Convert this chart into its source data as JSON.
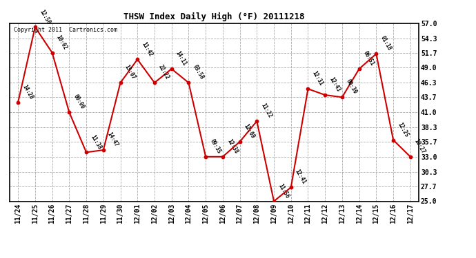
{
  "title": "THSW Index Daily High (°F) 20111218",
  "copyright": "Copyright 2011  Cartronics.com",
  "background_color": "#ffffff",
  "plot_bg_color": "#ffffff",
  "grid_color": "#aaaaaa",
  "line_color": "#cc0000",
  "marker_color": "#cc0000",
  "x_labels": [
    "11/24",
    "11/25",
    "11/26",
    "11/27",
    "11/28",
    "11/29",
    "11/30",
    "12/01",
    "12/02",
    "12/03",
    "12/04",
    "12/05",
    "12/06",
    "12/07",
    "12/08",
    "12/09",
    "12/10",
    "12/11",
    "12/12",
    "12/13",
    "12/14",
    "12/15",
    "12/16",
    "12/17"
  ],
  "y_values": [
    42.8,
    56.3,
    51.7,
    41.0,
    33.8,
    34.2,
    46.3,
    50.5,
    46.3,
    48.8,
    46.3,
    33.0,
    33.0,
    35.7,
    39.4,
    25.0,
    27.5,
    45.2,
    44.1,
    43.7,
    48.8,
    51.5,
    36.0,
    33.0
  ],
  "annotations": [
    "14:28",
    "12:50",
    "10:02",
    "00:00",
    "11:38",
    "14:47",
    "13:07",
    "11:42",
    "22:22",
    "14:11",
    "03:58",
    "09:35",
    "12:38",
    "12:09",
    "11:22",
    "11:56",
    "12:41",
    "12:31",
    "12:43",
    "00:30",
    "06:51",
    "01:18",
    "12:25",
    "10:27"
  ],
  "ylim": [
    25.0,
    57.0
  ],
  "yticks": [
    25.0,
    27.7,
    30.3,
    33.0,
    35.7,
    38.3,
    41.0,
    43.7,
    46.3,
    49.0,
    51.7,
    54.3,
    57.0
  ]
}
